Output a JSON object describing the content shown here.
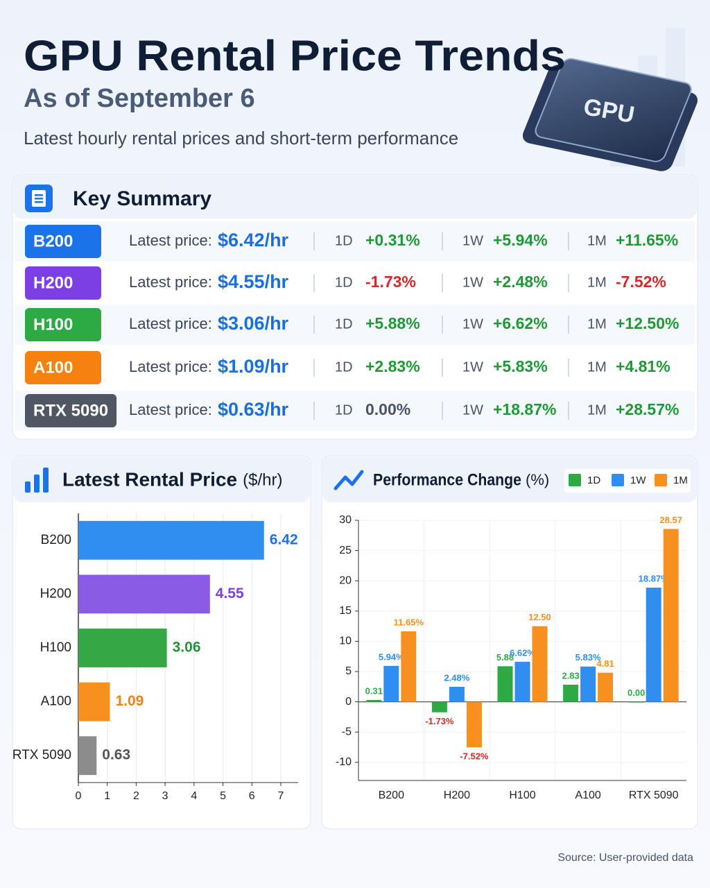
{
  "header": {
    "title": "GPU Rental Price Trends",
    "subtitle": "As of September 6",
    "description": "Latest hourly rental prices and short-term performance",
    "badge": "GPU"
  },
  "summary": {
    "title": "Key Summary",
    "price_label": "Latest price:",
    "period_labels": [
      "1D",
      "1W",
      "1M"
    ],
    "rows": [
      {
        "name": "B200",
        "color": "#1a73e8",
        "price": "$6.42/hr",
        "changes": [
          "+0.31%",
          "+5.94%",
          "+11.65%"
        ]
      },
      {
        "name": "H200",
        "color": "#7b3fe4",
        "price": "$4.55/hr",
        "changes": [
          "-1.73%",
          "+2.48%",
          "-7.52%"
        ]
      },
      {
        "name": "H100",
        "color": "#2eaa45",
        "price": "$3.06/hr",
        "changes": [
          "+5.88%",
          "+6.62%",
          "+12.50%"
        ]
      },
      {
        "name": "A100",
        "color": "#f5820f",
        "price": "$1.09/hr",
        "changes": [
          "+2.83%",
          "+5.83%",
          "+4.81%"
        ]
      },
      {
        "name": "RTX 5090",
        "color": "#4f5763",
        "price": "$0.63/hr",
        "changes": [
          "0.00%",
          "+18.87%",
          "+28.57%"
        ]
      }
    ]
  },
  "chart_data": [
    {
      "type": "hbar",
      "title": "Latest Rental Price",
      "unit": "($/hr)",
      "categories": [
        "B200",
        "H200",
        "H100",
        "A100",
        "RTX 5090"
      ],
      "values": [
        6.42,
        4.55,
        3.06,
        1.09,
        0.63
      ],
      "colors": [
        "#2f8ef0",
        "#8a5ce6",
        "#33a845",
        "#f7901e",
        "#8c8c8c"
      ],
      "label_colors": [
        "#1a73e8",
        "#7b3fe4",
        "#23923a",
        "#f0820f",
        "#555555"
      ],
      "xlim": [
        0,
        7.6
      ],
      "xticks": [
        0,
        1,
        2,
        3,
        4,
        5,
        6,
        7
      ],
      "grid": true
    },
    {
      "type": "bar",
      "title": "Performance Change",
      "unit": "(%)",
      "categories": [
        "B200",
        "H200",
        "H100",
        "A100",
        "RTX 5090"
      ],
      "series": [
        {
          "name": "1D",
          "color": "#2eaa45",
          "values": [
            0.31,
            -1.73,
            5.88,
            2.83,
            0.0
          ],
          "value_labels": [
            "0.31",
            "-1.73%",
            "5.88",
            "2.83",
            "0.00"
          ]
        },
        {
          "name": "1W",
          "color": "#2f8ef0",
          "values": [
            5.94,
            2.48,
            6.62,
            5.83,
            18.87
          ],
          "value_labels": [
            "5.94%",
            "2.48%",
            "6.62%",
            "5.83%",
            "18.87%"
          ]
        },
        {
          "name": "1M",
          "color": "#f7901e",
          "values": [
            11.65,
            -7.52,
            12.5,
            4.81,
            28.57
          ],
          "value_labels": [
            "11.65%",
            "-7.52%",
            "12.50",
            "4.81",
            "28.57"
          ]
        }
      ],
      "ylim": [
        -13,
        30
      ],
      "yticks": [
        -10,
        -5,
        0,
        5,
        10,
        15,
        20,
        25,
        30
      ],
      "grid": true,
      "legend": "top-right"
    }
  ],
  "footer": {
    "source": "Source: User-provided data"
  }
}
